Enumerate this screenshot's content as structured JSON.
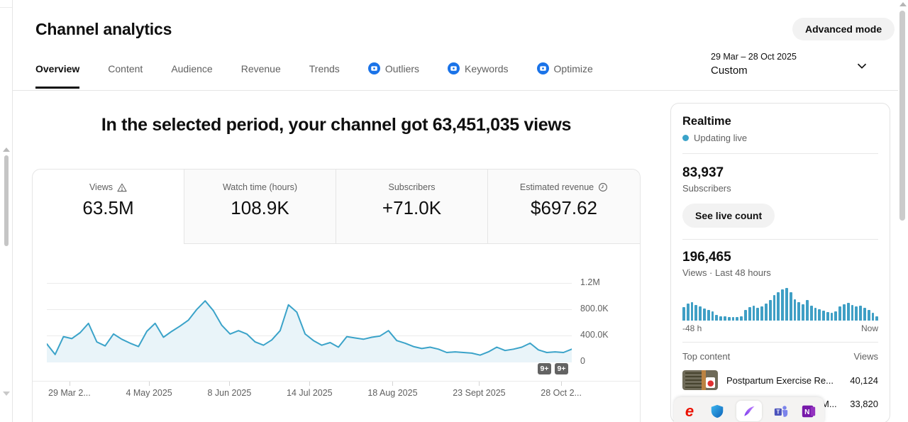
{
  "page": {
    "title": "Channel analytics",
    "advanced_mode_label": "Advanced mode"
  },
  "tabs": [
    {
      "label": "Overview",
      "active": true
    },
    {
      "label": "Content"
    },
    {
      "label": "Audience"
    },
    {
      "label": "Revenue"
    },
    {
      "label": "Trends"
    },
    {
      "label": "Outliers",
      "icon": "blue-sparkle"
    },
    {
      "label": "Keywords",
      "icon": "blue-sparkle"
    },
    {
      "label": "Optimize",
      "icon": "blue-sparkle"
    }
  ],
  "date_picker": {
    "range": "29 Mar – 28 Oct 2025",
    "mode": "Custom"
  },
  "headline": {
    "text": "In the selected period, your channel got 63,451,035 views"
  },
  "metric_cards": [
    {
      "label": "Views",
      "value": "63.5M",
      "icon": "warning"
    },
    {
      "label": "Watch time (hours)",
      "value": "108.9K"
    },
    {
      "label": "Subscribers",
      "value": "+71.0K"
    },
    {
      "label": "Estimated revenue",
      "value": "$697.62",
      "icon": "clock"
    }
  ],
  "chart_data": [
    {
      "type": "area",
      "title": "Channel views over selected period",
      "x_tick_labels": [
        "29 Mar 2...",
        "4 May 2025",
        "8 Jun 2025",
        "14 Jul 2025",
        "18 Aug 2025",
        "23 Sept 2025",
        "28 Oct 2..."
      ],
      "y_tick_labels": [
        "1.2M",
        "800.0K",
        "400.0K",
        "0"
      ],
      "ylim": [
        0,
        1200000
      ],
      "grid": true,
      "line_color": "#3ba3c9",
      "fill_color": "#e9f4f9",
      "values_thousands": [
        280,
        120,
        390,
        360,
        450,
        590,
        310,
        250,
        430,
        350,
        290,
        240,
        470,
        590,
        380,
        470,
        550,
        640,
        800,
        930,
        780,
        560,
        430,
        480,
        430,
        310,
        260,
        340,
        480,
        870,
        760,
        430,
        330,
        260,
        300,
        230,
        390,
        370,
        350,
        380,
        400,
        480,
        330,
        290,
        240,
        210,
        230,
        200,
        150,
        160,
        150,
        140,
        110,
        160,
        230,
        180,
        200,
        230,
        290,
        190,
        150,
        160,
        150,
        200
      ],
      "event_badges": [
        "9+",
        "9+"
      ]
    },
    {
      "type": "bar",
      "title": "Views · Last 48 hours",
      "xlabel_left": "-48 h",
      "xlabel_right": "Now",
      "bar_color": "#3f9fc5",
      "values_relative": [
        42,
        52,
        57,
        48,
        43,
        38,
        33,
        28,
        18,
        14,
        12,
        11,
        10,
        11,
        13,
        32,
        42,
        46,
        40,
        44,
        52,
        62,
        78,
        88,
        96,
        100,
        86,
        66,
        56,
        50,
        62,
        46,
        40,
        34,
        30,
        26,
        24,
        28,
        44,
        50,
        55,
        48,
        44,
        46,
        40,
        33,
        25,
        12
      ]
    }
  ],
  "realtime": {
    "title": "Realtime",
    "status": "Updating live",
    "subscribers_count": "83,937",
    "subscribers_label": "Subscribers",
    "live_count_button": "See live count",
    "views_count": "196,465",
    "views_label": "Views · Last 48 hours",
    "axis_left": "-48 h",
    "axis_right": "Now"
  },
  "top_content": {
    "header": "Top content",
    "views_header": "Views",
    "items": [
      {
        "title": "Postpartum Exercise Re...",
        "views": "40,124"
      },
      {
        "title": "M...",
        "views": "33,820"
      }
    ]
  },
  "dock": {
    "icons": [
      "adobe-express",
      "windows-security",
      "feather-pen",
      "teams",
      "onenote"
    ]
  },
  "colors": {
    "accent": "#3ba3c9",
    "tab_icon_blue": "#1a73e8",
    "badge_gray": "#636363"
  }
}
